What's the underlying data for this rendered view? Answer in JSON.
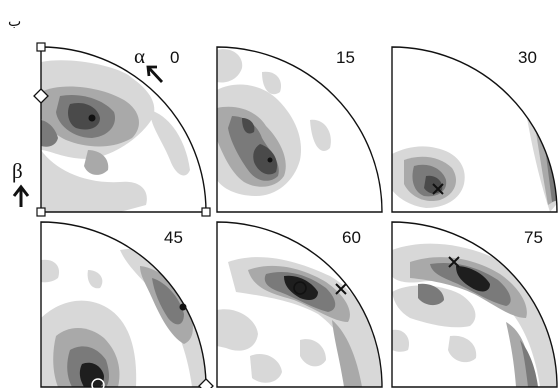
{
  "figure": {
    "corner_label": "ب",
    "alpha_label": "α",
    "beta_label": "β",
    "panels": [
      {
        "label": "0"
      },
      {
        "label": "15"
      },
      {
        "label": "30"
      },
      {
        "label": "45"
      },
      {
        "label": "60"
      },
      {
        "label": "75"
      }
    ]
  },
  "colors": {
    "darkest": "#1e1e1e",
    "dark": "#4a4a4a",
    "mid": "#7a7a7a",
    "light": "#a9a9a9",
    "lightest": "#d8d8d8",
    "outline": "#111111"
  }
}
